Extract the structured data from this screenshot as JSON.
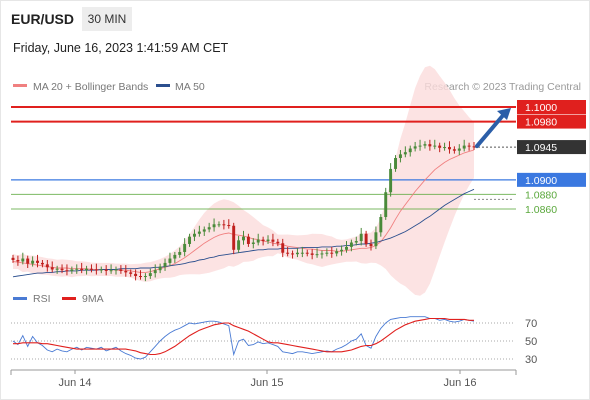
{
  "header": {
    "symbol": "EUR/USD",
    "timeframe_tab": "30 MIN",
    "datetime": "Friday, June 16, 2023 1:41:59 AM CET"
  },
  "legend": {
    "items": [
      {
        "label": "MA 20 + Bollinger Bands",
        "color": "#f08080"
      },
      {
        "label": "MA 50",
        "color": "#2b4f8e"
      }
    ],
    "copyright": "Research © 2023 Trading Central"
  },
  "chart_data": [
    {
      "type": "candlestick",
      "title": "",
      "x_labels": [
        "Jun 14",
        "Jun 15",
        "Jun 16"
      ],
      "ylim": [
        1.07,
        1.101
      ],
      "levels": [
        {
          "label": "1.1000",
          "value": 1.1,
          "kind": "resistance",
          "color": "#e0201e"
        },
        {
          "label": "1.0980",
          "value": 1.098,
          "kind": "resistance",
          "color": "#e0201e"
        },
        {
          "label": "1.0945",
          "value": 1.0945,
          "kind": "last-price",
          "color": "#333333"
        },
        {
          "label": "1.0900",
          "value": 1.09,
          "kind": "pivot",
          "color": "#3a78e0"
        },
        {
          "label": "1.0880",
          "value": 1.088,
          "kind": "support",
          "color": "#5aa83c"
        },
        {
          "label": "1.0860",
          "value": 1.086,
          "kind": "support",
          "color": "#5aa83c"
        }
      ],
      "close": [
        1.079,
        1.0788,
        1.0792,
        1.0785,
        1.0789,
        1.0786,
        1.0784,
        1.078,
        1.0777,
        1.0778,
        1.0776,
        1.0775,
        1.0777,
        1.0778,
        1.0776,
        1.0778,
        1.0777,
        1.0776,
        1.0777,
        1.0775,
        1.0776,
        1.0777,
        1.0775,
        1.0773,
        1.0771,
        1.0768,
        1.0767,
        1.0768,
        1.0772,
        1.0776,
        1.0781,
        1.0786,
        1.0792,
        1.0797,
        1.0801,
        1.0812,
        1.0822,
        1.0826,
        1.0829,
        1.0832,
        1.0835,
        1.0839,
        1.0839,
        1.0838,
        1.0837,
        1.0804,
        1.0817,
        1.0822,
        1.0812,
        1.0814,
        1.0818,
        1.0816,
        1.0818,
        1.0815,
        1.0813,
        1.08,
        1.0799,
        1.0798,
        1.08,
        1.08,
        1.0799,
        1.0797,
        1.0798,
        1.0799,
        1.08,
        1.0799,
        1.0802,
        1.0804,
        1.0808,
        1.0814,
        1.0816,
        1.0826,
        1.0812,
        1.0809,
        1.0828,
        1.0849,
        1.0883,
        1.0915,
        1.093,
        1.0935,
        1.0938,
        1.0943,
        1.0946,
        1.0947,
        1.0949,
        1.0946,
        1.0947,
        1.0944,
        1.0945,
        1.0942,
        1.094,
        1.0943,
        1.0947,
        1.0946,
        1.0945
      ],
      "series": [
        {
          "name": "MA 20",
          "values": [
            1.0788,
            1.0787,
            1.0786,
            1.0785,
            1.0784,
            1.0783,
            1.0782,
            1.0781,
            1.078,
            1.0779,
            1.0779,
            1.0779,
            1.0778,
            1.0778,
            1.0778,
            1.0778,
            1.0777,
            1.0777,
            1.0777,
            1.0777,
            1.0777,
            1.0776,
            1.0776,
            1.0776,
            1.0775,
            1.0774,
            1.0773,
            1.0773,
            1.0774,
            1.0776,
            1.0778,
            1.078,
            1.0782,
            1.0785,
            1.0789,
            1.0793,
            1.0798,
            1.0803,
            1.0808,
            1.0813,
            1.0817,
            1.0821,
            1.0824,
            1.0826,
            1.0827,
            1.0825,
            1.0824,
            1.0823,
            1.0821,
            1.0819,
            1.0818,
            1.0816,
            1.0815,
            1.0813,
            1.0812,
            1.0811,
            1.0809,
            1.0808,
            1.0807,
            1.0806,
            1.0805,
            1.0805,
            1.0804,
            1.0803,
            1.0803,
            1.0803,
            1.0802,
            1.0802,
            1.0803,
            1.0804,
            1.0805,
            1.0806,
            1.0806,
            1.0807,
            1.081,
            1.0815,
            1.0824,
            1.0834,
            1.0846,
            1.0857,
            1.0866,
            1.0875,
            1.0884,
            1.0892,
            1.09,
            1.0907,
            1.0914,
            1.0919,
            1.0924,
            1.0928,
            1.0931,
            1.0934,
            1.0937,
            1.0939,
            1.0941
          ]
        },
        {
          "name": "MA 50",
          "values": [
            1.0767,
            1.0768,
            1.0769,
            1.077,
            1.0771,
            1.0772,
            1.0772,
            1.0773,
            1.0773,
            1.0774,
            1.0774,
            1.0775,
            1.0775,
            1.0775,
            1.0776,
            1.0776,
            1.0776,
            1.0776,
            1.0777,
            1.0777,
            1.0777,
            1.0777,
            1.0778,
            1.0778,
            1.0778,
            1.0778,
            1.0779,
            1.0779,
            1.0779,
            1.078,
            1.078,
            1.0781,
            1.0782,
            1.0783,
            1.0784,
            1.0785,
            1.0787,
            1.0788,
            1.079,
            1.0791,
            1.0793,
            1.0794,
            1.0796,
            1.0797,
            1.0798,
            1.0799,
            1.08,
            1.0801,
            1.0802,
            1.0803,
            1.0804,
            1.0804,
            1.0805,
            1.0805,
            1.0805,
            1.0806,
            1.0806,
            1.0806,
            1.0806,
            1.0807,
            1.0807,
            1.0807,
            1.0807,
            1.0808,
            1.0808,
            1.0808,
            1.0809,
            1.0809,
            1.081,
            1.081,
            1.0811,
            1.0812,
            1.0812,
            1.0813,
            1.0814,
            1.0816,
            1.0818,
            1.082,
            1.0823,
            1.0826,
            1.0829,
            1.0833,
            1.0837,
            1.0841,
            1.0846,
            1.085,
            1.0855,
            1.086,
            1.0865,
            1.0869,
            1.0873,
            1.0877,
            1.0881,
            1.0884,
            1.0887
          ]
        }
      ]
    },
    {
      "type": "line",
      "title": "",
      "ylim": [
        20,
        80
      ],
      "y_ticks": [
        70,
        50,
        30
      ],
      "series": [
        {
          "name": "RSI",
          "color": "#4a7bd4",
          "values": [
            50,
            46,
            56,
            44,
            55,
            48,
            45,
            40,
            38,
            41,
            39,
            38,
            41,
            43,
            40,
            43,
            42,
            41,
            43,
            39,
            41,
            43,
            39,
            36,
            34,
            31,
            30,
            32,
            38,
            44,
            50,
            55,
            59,
            62,
            64,
            67,
            70,
            69,
            70,
            71,
            72,
            72,
            71,
            69,
            67,
            35,
            50,
            52,
            45,
            46,
            49,
            47,
            48,
            46,
            44,
            38,
            37,
            36,
            38,
            38,
            37,
            36,
            37,
            38,
            39,
            38,
            41,
            43,
            46,
            50,
            52,
            58,
            45,
            42,
            55,
            64,
            70,
            74,
            75,
            76,
            76,
            77,
            77,
            77,
            77,
            75,
            75,
            73,
            74,
            72,
            71,
            72,
            74,
            73,
            72
          ]
        },
        {
          "name": "9MA",
          "color": "#e0201e",
          "values": [
            47,
            47,
            48,
            48,
            48,
            48,
            47,
            47,
            46,
            45,
            44,
            43,
            42,
            41,
            41,
            41,
            41,
            41,
            41,
            41,
            41,
            41,
            41,
            41,
            40,
            39,
            37,
            36,
            35,
            35,
            36,
            38,
            41,
            44,
            48,
            52,
            56,
            59,
            62,
            64,
            66,
            68,
            69,
            70,
            70,
            67,
            65,
            63,
            61,
            58,
            55,
            52,
            49,
            48,
            48,
            47,
            46,
            45,
            44,
            43,
            42,
            41,
            40,
            39,
            38,
            38,
            38,
            38,
            39,
            40,
            42,
            44,
            45,
            45,
            47,
            50,
            54,
            58,
            62,
            65,
            68,
            70,
            72,
            73,
            74,
            75,
            75,
            75,
            75,
            74,
            74,
            74,
            74,
            73,
            73
          ]
        }
      ]
    }
  ]
}
